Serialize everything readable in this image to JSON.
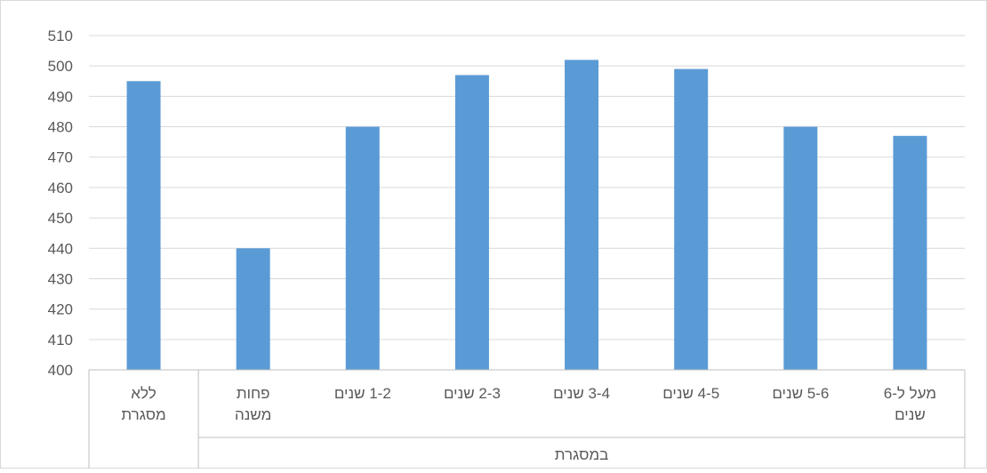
{
  "chart_data": {
    "type": "bar",
    "title": "",
    "xlabel": "",
    "ylabel": "",
    "ylim": [
      400,
      510
    ],
    "ytick_step": 10,
    "grid": true,
    "legend": "none",
    "categories": [
      [
        "ללא",
        "מסגרת"
      ],
      [
        "פחות",
        "משנה"
      ],
      [
        "1-2 שנים"
      ],
      [
        "2-3 שנים"
      ],
      [
        "3-4 שנים"
      ],
      [
        "4-5 שנים"
      ],
      [
        "5-6 שנים"
      ],
      [
        "מעל ל-6",
        "שנים"
      ]
    ],
    "values": [
      495,
      440,
      480,
      497,
      502,
      499,
      480,
      477
    ],
    "group_label": "במסגרת",
    "group_start_index": 1,
    "colors": {
      "bar": "#5b9bd5",
      "grid": "#d9d9d9",
      "axis": "#bfbfbf",
      "text": "#595959"
    }
  }
}
